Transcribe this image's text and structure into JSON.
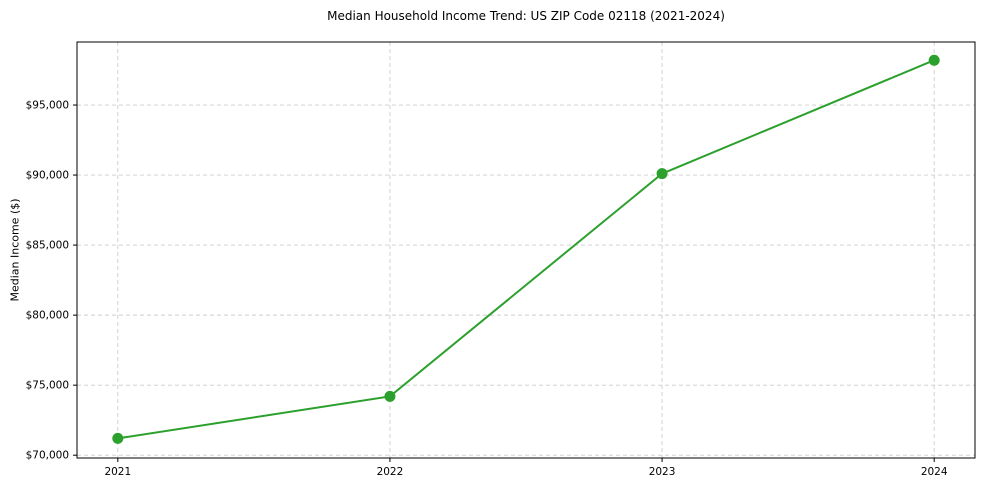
{
  "chart_data": {
    "type": "line",
    "title": "Median Household Income Trend: US ZIP Code 02118 (2021-2024)",
    "xlabel": "",
    "ylabel": "Median Income ($)",
    "categories": [
      "2021",
      "2022",
      "2023",
      "2024"
    ],
    "values": [
      71200,
      74200,
      90100,
      98200
    ],
    "ylim": [
      69800,
      99500
    ],
    "yticks": [
      70000,
      75000,
      80000,
      85000,
      90000,
      95000
    ],
    "ytick_labels": [
      "$70,000",
      "$75,000",
      "$80,000",
      "$85,000",
      "$90,000",
      "$95,000"
    ],
    "grid": true,
    "grid_style": "dashed",
    "legend": "none",
    "line_color": "#2ca02c",
    "marker_color": "#2ca02c",
    "grid_color": "#cccccc",
    "axis_color": "#000000",
    "tick_label_color": "#000000"
  }
}
